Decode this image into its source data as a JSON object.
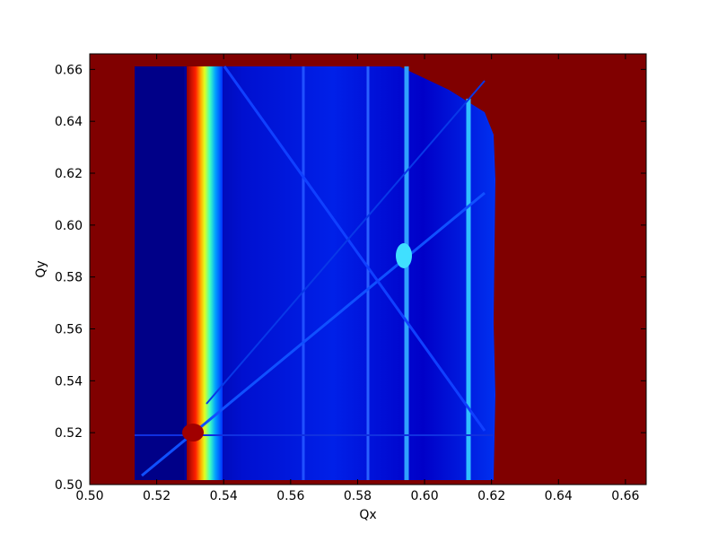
{
  "chart_data": {
    "type": "heatmap",
    "xlabel": "Qx",
    "ylabel": "Qy",
    "xlim": [
      0.5,
      0.6662
    ],
    "ylim": [
      0.5,
      0.666
    ],
    "xticks": [
      {
        "value": 0.5,
        "label": "0.50"
      },
      0.52,
      0.54,
      0.56,
      0.58,
      {
        "value": 0.6,
        "label": "0.60"
      },
      0.62,
      0.64,
      0.66
    ],
    "yticks": [
      {
        "value": 0.5,
        "label": "0.50"
      },
      0.52,
      0.54,
      0.56,
      0.58,
      {
        "value": 0.6,
        "label": "0.60"
      },
      0.62,
      0.64,
      0.66
    ]
  }
}
